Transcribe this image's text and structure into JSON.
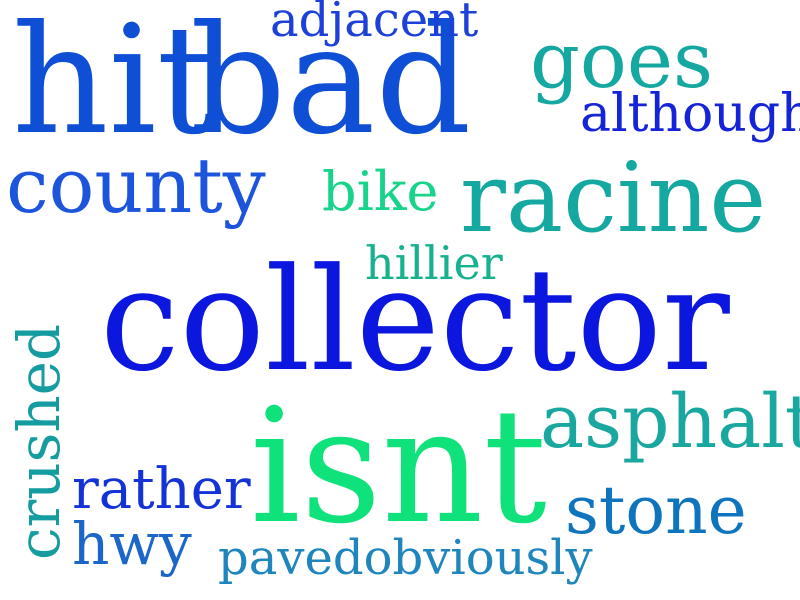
{
  "wordcloud": {
    "words": [
      {
        "text": "hit",
        "color": "#0f4fd6"
      },
      {
        "text": "bad",
        "color": "#0f4fd6"
      },
      {
        "text": "adjacent",
        "color": "#1d40d8"
      },
      {
        "text": "goes",
        "color": "#14a8a0"
      },
      {
        "text": "although",
        "color": "#1524d6"
      },
      {
        "text": "county",
        "color": "#1c55dc"
      },
      {
        "text": "bike",
        "color": "#18d48a"
      },
      {
        "text": "racine",
        "color": "#14a8a0"
      },
      {
        "text": "hillier",
        "color": "#17b28d"
      },
      {
        "text": "collector",
        "color": "#0b17df"
      },
      {
        "text": "crushed",
        "color": "#159ca0"
      },
      {
        "text": "asphalt",
        "color": "#1aa79f"
      },
      {
        "text": "isnt",
        "color": "#0fe27b"
      },
      {
        "text": "rather",
        "color": "#1433d7"
      },
      {
        "text": "stone",
        "color": "#0f74be"
      },
      {
        "text": "hwy",
        "color": "#1a66c9"
      },
      {
        "text": "pavedobviously",
        "color": "#1f85bd"
      }
    ]
  }
}
